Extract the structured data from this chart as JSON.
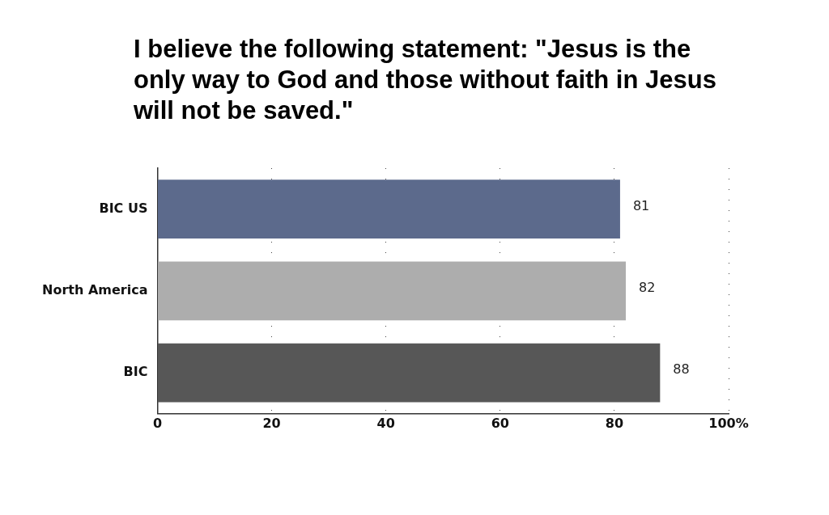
{
  "chart_data": {
    "type": "bar",
    "orientation": "horizontal",
    "title": "I believe the following statement: \"Jesus is the only way to God and those without faith in Jesus will not be saved.\"",
    "categories": [
      "BIC US",
      "North America",
      "BIC"
    ],
    "values": [
      81,
      82,
      88
    ],
    "colors": [
      "#5c6a8c",
      "#adadad",
      "#575757"
    ],
    "xlim": [
      0,
      100
    ],
    "xticks": [
      0,
      20,
      40,
      60,
      80,
      {
        "value": 100,
        "label": "100%"
      }
    ],
    "grid": "x",
    "data_labels": true,
    "legend": false
  }
}
